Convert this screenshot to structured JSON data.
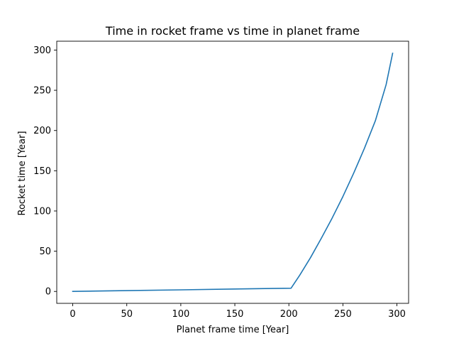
{
  "chart_data": {
    "type": "line",
    "title": "Time in rocket frame vs time in planet frame",
    "xlabel": "Planet frame time [Year]",
    "ylabel": "Rocket time [Year]",
    "xlim": [
      -14.8,
      310.8
    ],
    "ylim": [
      -14.8,
      311.0
    ],
    "xticks": [
      0,
      50,
      100,
      150,
      200,
      250,
      300
    ],
    "yticks": [
      0,
      50,
      100,
      150,
      200,
      250,
      300
    ],
    "grid": false,
    "legend": "none",
    "series": [
      {
        "color": "#1f77b4",
        "x": [
          0,
          50,
          100,
          150,
          202,
          210,
          220,
          230,
          240,
          250,
          260,
          270,
          280,
          290,
          296
        ],
        "y": [
          0,
          1.0,
          2.0,
          3.0,
          4.0,
          20,
          42,
          66,
          91,
          118,
          147,
          178,
          212,
          257,
          296
        ]
      }
    ]
  }
}
